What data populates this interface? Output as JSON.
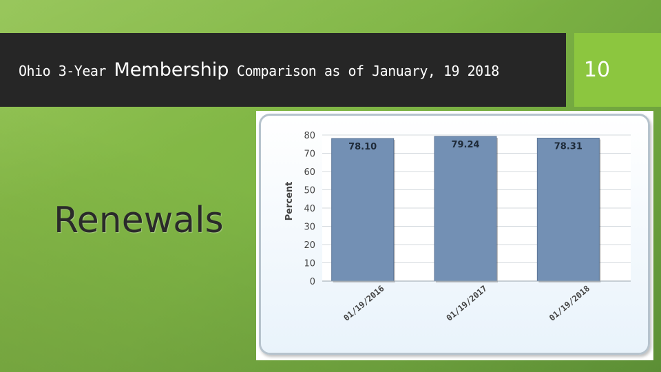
{
  "slide": {
    "title_part1": "Ohio 3-Year ",
    "title_part2": "Membership",
    "title_part3": " Comparison as of January, 19 2018",
    "number": "10",
    "subtitle": "Renewals"
  },
  "colors": {
    "title_bar": "#262626",
    "number_box": "#8cc63f",
    "bar": "#7390b4"
  },
  "chart_data": {
    "type": "bar",
    "categories": [
      "01/19/2016",
      "01/19/2017",
      "01/19/2018"
    ],
    "values": [
      78.1,
      79.24,
      78.31
    ],
    "value_labels": [
      "78.10",
      "79.24",
      "78.31"
    ],
    "ylabel": "Percent",
    "xlabel": "",
    "ylim": [
      0,
      80
    ],
    "yticks": [
      0,
      10,
      20,
      30,
      40,
      50,
      60,
      70,
      80
    ],
    "grid": true
  }
}
